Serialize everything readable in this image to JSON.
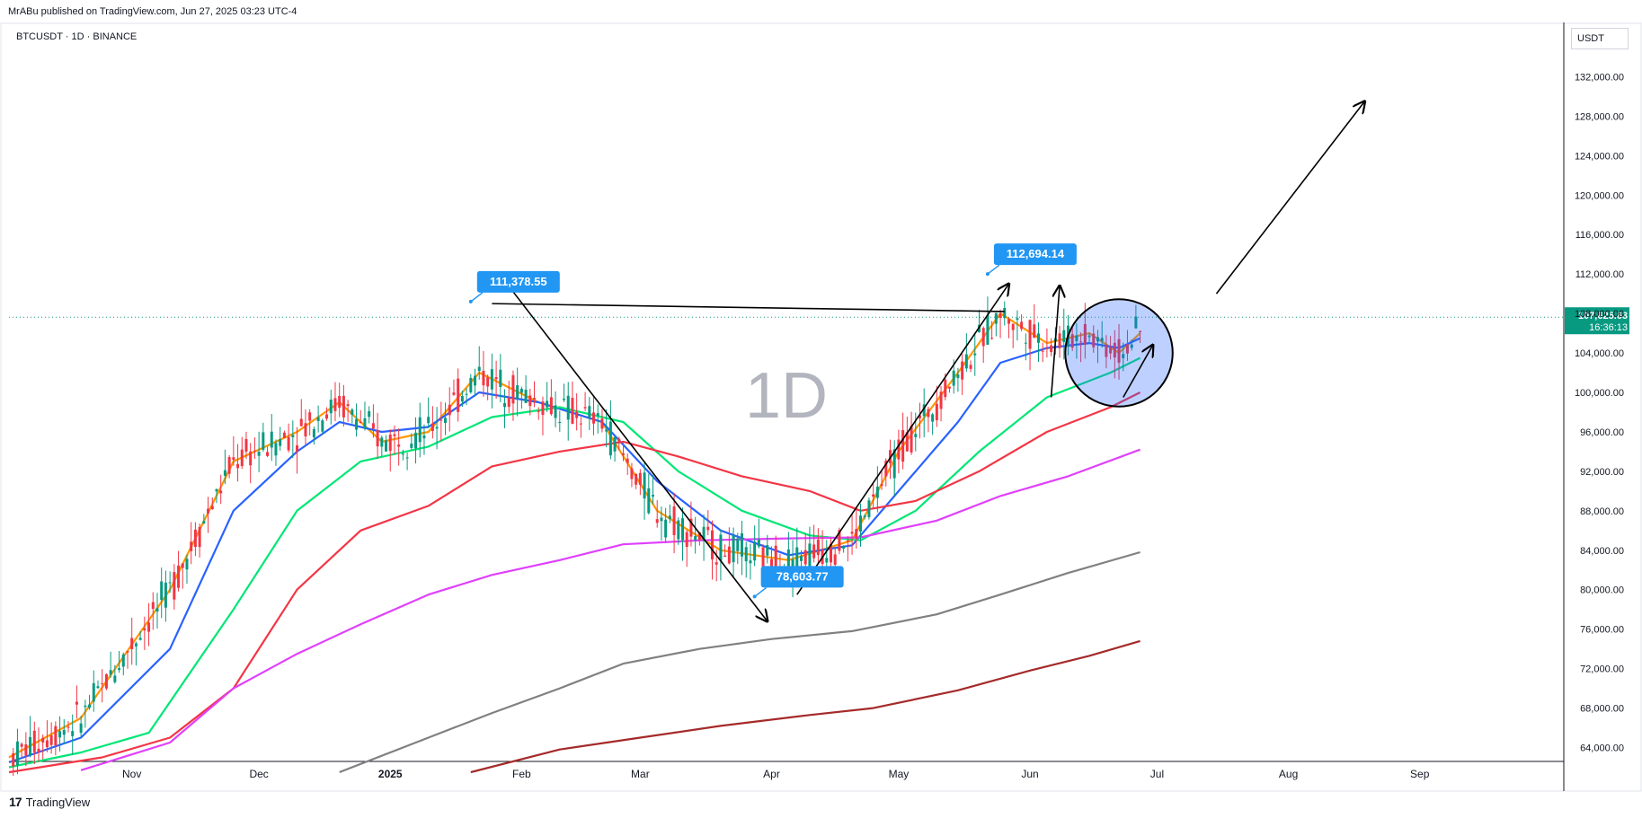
{
  "header": {
    "published": "MrABu published on TradingView.com, Jun 27, 2025 03:23 UTC-4"
  },
  "symbol": {
    "label": "BTCUSDT · 1D · BINANCE"
  },
  "currency": {
    "label": "USDT"
  },
  "footer": {
    "brand": "TradingView"
  },
  "watermark": "1D",
  "chart_data": {
    "type": "candlestick",
    "symbol": "BTCUSDT",
    "timeframe": "1D",
    "exchange": "BINANCE",
    "ylim": [
      61500,
      137500
    ],
    "y_ticks": [
      "64,000.00",
      "68,000.00",
      "72,000.00",
      "76,000.00",
      "80,000.00",
      "84,000.00",
      "88,000.00",
      "92,000.00",
      "96,000.00",
      "100,000.00",
      "104,000.00",
      "108,000.00",
      "112,000.00",
      "116,000.00",
      "120,000.00",
      "124,000.00",
      "128,000.00",
      "132,000.00"
    ],
    "x_ticks": [
      "Nov",
      "Dec",
      "2025",
      "Feb",
      "Mar",
      "Apr",
      "May",
      "Jun",
      "Jul",
      "Aug",
      "Sep"
    ],
    "xlim": [
      "2024-10-03",
      "2025-10-05"
    ],
    "last_price": {
      "value": "107,625.63",
      "countdown": "16:36:13"
    },
    "price_callouts": [
      {
        "label": "111,378.55",
        "date": "2025-01-20",
        "price": 109200
      },
      {
        "label": "112,694.14",
        "date": "2025-05-22",
        "price": 112000
      },
      {
        "label": "78,603.77",
        "date": "2025-03-28",
        "price": 79300
      }
    ],
    "moving_averages": [
      {
        "color": "#ff9800",
        "points": [
          [
            "2024-10-03",
            63000
          ],
          [
            "2024-10-20",
            67000
          ],
          [
            "2024-11-10",
            80000
          ],
          [
            "2024-11-25",
            93000
          ],
          [
            "2024-12-10",
            96000
          ],
          [
            "2024-12-20",
            99000
          ],
          [
            "2024-12-30",
            95000
          ],
          [
            "2025-01-10",
            96000
          ],
          [
            "2025-01-22",
            102000
          ],
          [
            "2025-02-05",
            99000
          ],
          [
            "2025-02-20",
            97000
          ],
          [
            "2025-03-05",
            88000
          ],
          [
            "2025-03-20",
            84000
          ],
          [
            "2025-04-05",
            83000
          ],
          [
            "2025-04-20",
            85000
          ],
          [
            "2025-05-01",
            94000
          ],
          [
            "2025-05-15",
            102000
          ],
          [
            "2025-05-25",
            108000
          ],
          [
            "2025-06-05",
            105000
          ],
          [
            "2025-06-15",
            106000
          ],
          [
            "2025-06-22",
            104000
          ],
          [
            "2025-06-27",
            106000
          ]
        ]
      },
      {
        "color": "#2962ff",
        "points": [
          [
            "2024-10-03",
            62500
          ],
          [
            "2024-10-20",
            65000
          ],
          [
            "2024-11-10",
            74000
          ],
          [
            "2024-11-25",
            88000
          ],
          [
            "2024-12-10",
            94000
          ],
          [
            "2024-12-20",
            97000
          ],
          [
            "2024-12-30",
            96000
          ],
          [
            "2025-01-10",
            96500
          ],
          [
            "2025-01-22",
            100000
          ],
          [
            "2025-02-05",
            99000
          ],
          [
            "2025-02-20",
            97000
          ],
          [
            "2025-03-05",
            91000
          ],
          [
            "2025-03-20",
            86000
          ],
          [
            "2025-04-05",
            83500
          ],
          [
            "2025-04-20",
            84500
          ],
          [
            "2025-05-01",
            90000
          ],
          [
            "2025-05-15",
            97000
          ],
          [
            "2025-05-25",
            103000
          ],
          [
            "2025-06-05",
            104500
          ],
          [
            "2025-06-15",
            105000
          ],
          [
            "2025-06-22",
            104500
          ],
          [
            "2025-06-27",
            105500
          ]
        ]
      },
      {
        "color": "#00e676",
        "points": [
          [
            "2024-10-03",
            62000
          ],
          [
            "2024-10-20",
            63500
          ],
          [
            "2024-11-05",
            65500
          ],
          [
            "2024-11-25",
            78000
          ],
          [
            "2024-12-10",
            88000
          ],
          [
            "2024-12-25",
            93000
          ],
          [
            "2025-01-10",
            94500
          ],
          [
            "2025-01-25",
            97500
          ],
          [
            "2025-02-10",
            98500
          ],
          [
            "2025-02-25",
            97000
          ],
          [
            "2025-03-10",
            92000
          ],
          [
            "2025-03-25",
            88000
          ],
          [
            "2025-04-10",
            85500
          ],
          [
            "2025-04-22",
            85000
          ],
          [
            "2025-05-05",
            88000
          ],
          [
            "2025-05-20",
            94000
          ],
          [
            "2025-06-05",
            99500
          ],
          [
            "2025-06-20",
            102000
          ],
          [
            "2025-06-27",
            103500
          ]
        ]
      },
      {
        "color": "#f23645",
        "points": [
          [
            "2024-10-03",
            61500
          ],
          [
            "2024-10-25",
            63000
          ],
          [
            "2024-11-10",
            65000
          ],
          [
            "2024-11-25",
            70000
          ],
          [
            "2024-12-10",
            80000
          ],
          [
            "2024-12-25",
            86000
          ],
          [
            "2025-01-10",
            88500
          ],
          [
            "2025-01-25",
            92500
          ],
          [
            "2025-02-10",
            94000
          ],
          [
            "2025-02-25",
            95000
          ],
          [
            "2025-03-10",
            93500
          ],
          [
            "2025-03-25",
            91500
          ],
          [
            "2025-04-10",
            90000
          ],
          [
            "2025-04-22",
            88000
          ],
          [
            "2025-05-05",
            89000
          ],
          [
            "2025-05-20",
            92000
          ],
          [
            "2025-06-05",
            96000
          ],
          [
            "2025-06-20",
            98500
          ],
          [
            "2025-06-27",
            100000
          ]
        ]
      },
      {
        "color": "#e040fb",
        "points": [
          [
            "2024-10-20",
            61700
          ],
          [
            "2024-11-10",
            64500
          ],
          [
            "2024-11-25",
            70000
          ],
          [
            "2024-12-10",
            73500
          ],
          [
            "2024-12-25",
            76500
          ],
          [
            "2025-01-10",
            79500
          ],
          [
            "2025-01-25",
            81500
          ],
          [
            "2025-02-10",
            83000
          ],
          [
            "2025-02-25",
            84600
          ],
          [
            "2025-03-15",
            85000
          ],
          [
            "2025-04-05",
            85200
          ],
          [
            "2025-04-22",
            85300
          ],
          [
            "2025-05-10",
            87000
          ],
          [
            "2025-05-25",
            89500
          ],
          [
            "2025-06-10",
            91500
          ],
          [
            "2025-06-27",
            94200
          ]
        ]
      },
      {
        "color": "#808080",
        "points": [
          [
            "2024-12-20",
            61500
          ],
          [
            "2025-01-10",
            65000
          ],
          [
            "2025-01-25",
            67500
          ],
          [
            "2025-02-10",
            70000
          ],
          [
            "2025-02-25",
            72500
          ],
          [
            "2025-03-15",
            74000
          ],
          [
            "2025-04-01",
            75000
          ],
          [
            "2025-04-20",
            75800
          ],
          [
            "2025-05-10",
            77500
          ],
          [
            "2025-05-25",
            79500
          ],
          [
            "2025-06-10",
            81700
          ],
          [
            "2025-06-27",
            83800
          ]
        ]
      },
      {
        "color": "#a52a2a",
        "points": [
          [
            "2025-01-20",
            61500
          ],
          [
            "2025-02-10",
            63800
          ],
          [
            "2025-03-01",
            65000
          ],
          [
            "2025-03-20",
            66200
          ],
          [
            "2025-04-10",
            67300
          ],
          [
            "2025-04-25",
            68000
          ],
          [
            "2025-05-15",
            69800
          ],
          [
            "2025-06-01",
            71800
          ],
          [
            "2025-06-15",
            73300
          ],
          [
            "2025-06-27",
            74800
          ]
        ]
      }
    ],
    "drawings": [
      {
        "type": "arrow",
        "from": [
          "2025-01-30",
          110200
        ],
        "to": [
          "2025-03-31",
          76800
        ]
      },
      {
        "type": "line",
        "from": [
          "2025-01-25",
          109000
        ],
        "to": [
          "2025-05-26",
          108200
        ]
      },
      {
        "type": "arrow",
        "from": [
          "2025-04-07",
          79500
        ],
        "to": [
          "2025-05-27",
          111000
        ]
      },
      {
        "type": "arrow",
        "from": [
          "2025-06-06",
          99500
        ],
        "to": [
          "2025-06-08",
          110800
        ]
      },
      {
        "type": "arrow",
        "from": [
          "2025-06-23",
          99500
        ],
        "to": [
          "2025-06-30",
          104800
        ]
      },
      {
        "type": "arrow",
        "from": [
          "2025-07-15",
          110000
        ],
        "to": [
          "2025-08-19",
          129500
        ]
      }
    ],
    "highlight_circle": {
      "center": [
        "2025-06-22",
        104000
      ],
      "radius_days": 6.5,
      "fill": "#2962ff",
      "stroke": "#000000"
    }
  }
}
